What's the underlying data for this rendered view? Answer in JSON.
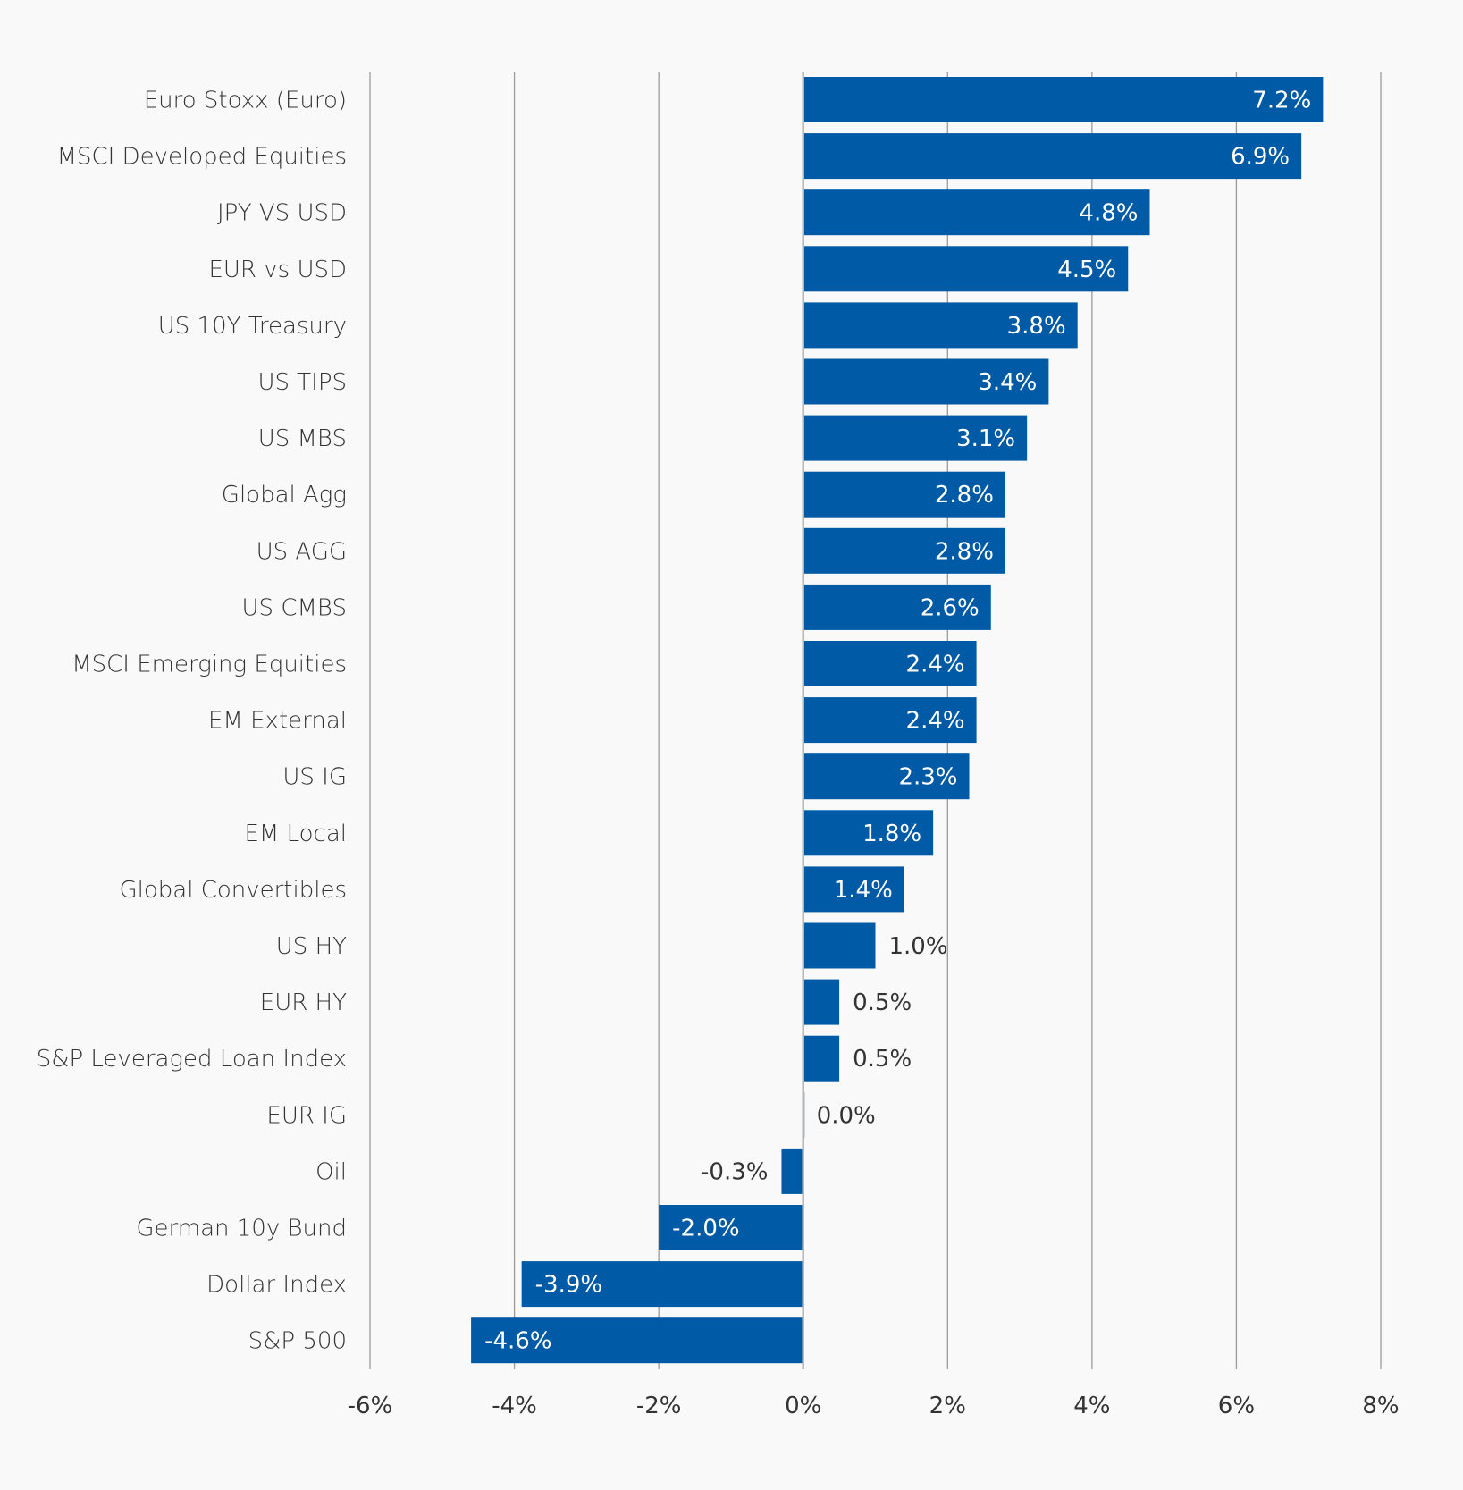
{
  "chart_data": {
    "type": "bar",
    "orientation": "horizontal",
    "title": "",
    "xlabel": "",
    "ylabel": "",
    "xlim": [
      -6,
      8
    ],
    "x_ticks": [
      -6,
      -4,
      -2,
      0,
      2,
      4,
      6,
      8
    ],
    "x_tick_labels": [
      "-6%",
      "-4%",
      "-2%",
      "0%",
      "2%",
      "4%",
      "6%",
      "8%"
    ],
    "grid": "vertical",
    "legend": "none",
    "bar_color": "#005aa5",
    "categories": [
      "Euro Stoxx (Euro)",
      "MSCI Developed Equities",
      "JPY VS USD",
      "EUR vs USD",
      "US 10Y Treasury",
      "US TIPS",
      "US MBS",
      "Global Agg",
      "US AGG",
      "US CMBS",
      "MSCI Emerging Equities",
      "EM External",
      "US IG",
      "EM Local",
      "Global Convertibles",
      "US HY",
      "EUR HY",
      "S&P Leveraged Loan Index",
      "EUR IG",
      "Oil",
      "German 10y Bund",
      "Dollar Index",
      "S&P 500"
    ],
    "values": [
      7.2,
      6.9,
      4.8,
      4.5,
      3.8,
      3.4,
      3.1,
      2.8,
      2.8,
      2.6,
      2.4,
      2.4,
      2.3,
      1.8,
      1.4,
      1.0,
      0.5,
      0.5,
      0.0,
      -0.3,
      -2.0,
      -3.9,
      -4.6
    ],
    "data_labels": [
      "7.2%",
      "6.9%",
      "4.8%",
      "4.5%",
      "3.8%",
      "3.4%",
      "3.1%",
      "2.8%",
      "2.8%",
      "2.6%",
      "2.4%",
      "2.4%",
      "2.3%",
      "1.8%",
      "1.4%",
      "1.0%",
      "0.5%",
      "0.5%",
      "0.0%",
      "-0.3%",
      "-2.0%",
      "-3.9%",
      "-4.6%"
    ]
  }
}
